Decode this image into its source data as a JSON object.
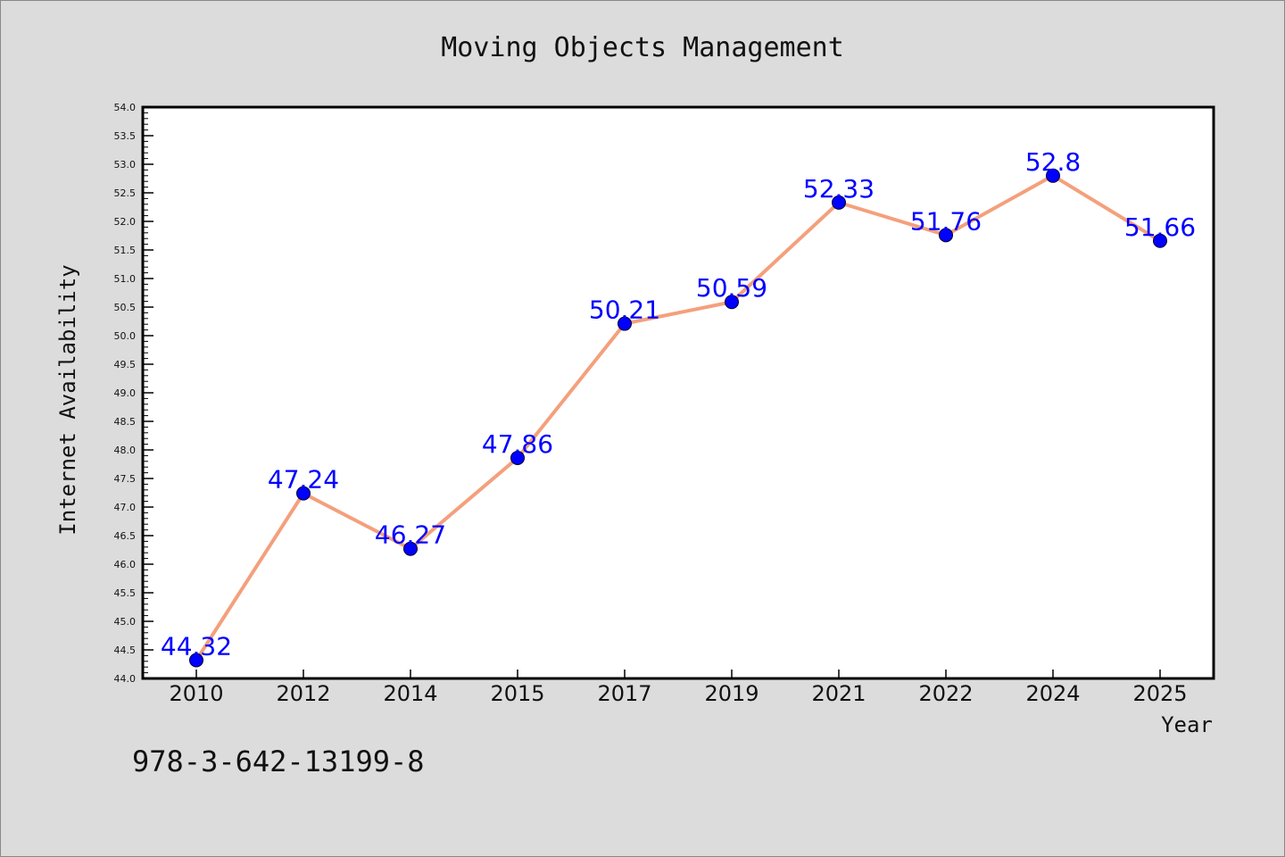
{
  "chart_data": {
    "type": "line",
    "title": "Moving Objects Management",
    "xlabel": "Year",
    "ylabel": "Internet Availability",
    "categories": [
      "2010",
      "2012",
      "2014",
      "2015",
      "2017",
      "2019",
      "2021",
      "2022",
      "2024",
      "2025"
    ],
    "series": [
      {
        "values": [
          44.32,
          47.24,
          46.27,
          47.86,
          50.21,
          50.59,
          52.33,
          51.76,
          52.8,
          51.66
        ],
        "labels": [
          "44.32",
          "47.24",
          "46.27",
          "47.86",
          "50.21",
          "50.59",
          "52.33",
          "51.76",
          "52.8",
          "51.66"
        ]
      }
    ],
    "ylim": [
      44.0,
      54.0
    ],
    "y_major_ticks": [
      "44.0",
      "44.5",
      "45.0",
      "45.5",
      "46.0",
      "46.5",
      "47.0",
      "47.5",
      "48.0",
      "48.5",
      "49.0",
      "49.5",
      "50.0",
      "50.5",
      "51.0",
      "51.5",
      "52.0",
      "52.5",
      "53.0",
      "53.5",
      "54.0"
    ],
    "grid": false,
    "line_color": "#f4a07c",
    "marker_color": "#0000ff",
    "label_color": "#0000ff",
    "annotation": "978-3-642-13199-8"
  }
}
